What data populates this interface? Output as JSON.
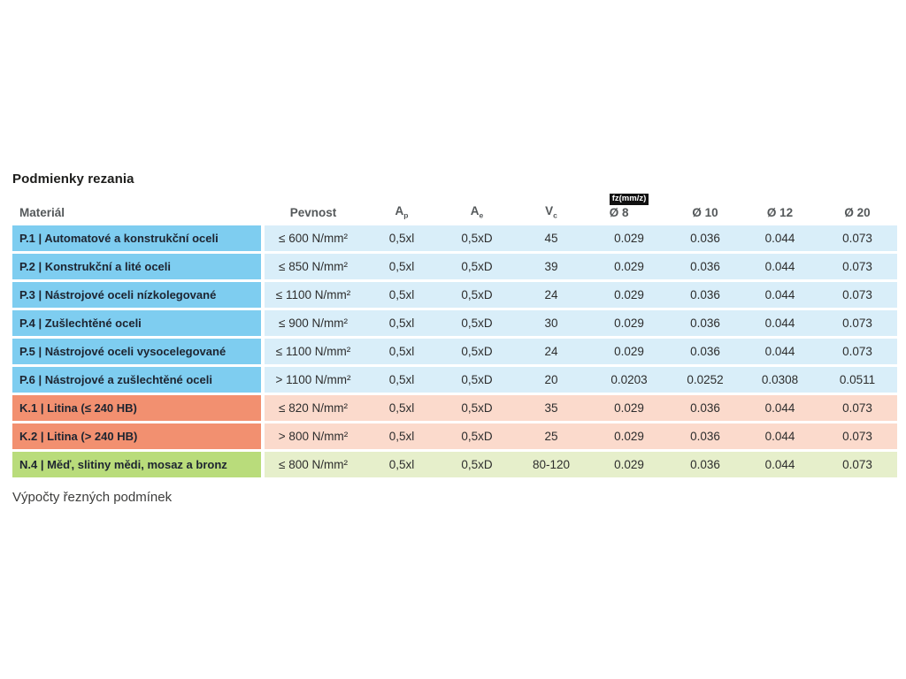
{
  "title": "Podmienky rezania",
  "caption": "Výpočty řezných podmínek",
  "table": {
    "headers": {
      "material": "Materiál",
      "pevnost": "Pevnost",
      "ap": {
        "base": "A",
        "sub": "p"
      },
      "ae": {
        "base": "A",
        "sub": "e"
      },
      "vc": {
        "base": "V",
        "sub": "c"
      },
      "fz_badge": "fz(mm/z)",
      "d8": "Ø 8",
      "d10": "Ø 10",
      "d12": "Ø 12",
      "d20": "Ø 20"
    },
    "rows": [
      {
        "theme": "blue",
        "material": "P.1 | Automatové a konstrukční oceli",
        "pevnost": "≤ 600 N/mm²",
        "ap": "0,5xl",
        "ae": "0,5xD",
        "vc": "45",
        "d8": "0.029",
        "d10": "0.036",
        "d12": "0.044",
        "d20": "0.073"
      },
      {
        "theme": "blue",
        "material": "P.2 | Konstrukční a lité oceli",
        "pevnost": "≤ 850 N/mm²",
        "ap": "0,5xl",
        "ae": "0,5xD",
        "vc": "39",
        "d8": "0.029",
        "d10": "0.036",
        "d12": "0.044",
        "d20": "0.073"
      },
      {
        "theme": "blue",
        "material": "P.3 | Nástrojové oceli nízkolegované",
        "pevnost": "≤ 1100 N/mm²",
        "ap": "0,5xl",
        "ae": "0,5xD",
        "vc": "24",
        "d8": "0.029",
        "d10": "0.036",
        "d12": "0.044",
        "d20": "0.073"
      },
      {
        "theme": "blue",
        "material": "P.4 | Zušlechtěné oceli",
        "pevnost": "≤ 900 N/mm²",
        "ap": "0,5xl",
        "ae": "0,5xD",
        "vc": "30",
        "d8": "0.029",
        "d10": "0.036",
        "d12": "0.044",
        "d20": "0.073"
      },
      {
        "theme": "blue",
        "material": "P.5 | Nástrojové oceli vysocelegované",
        "pevnost": "≤ 1100 N/mm²",
        "ap": "0,5xl",
        "ae": "0,5xD",
        "vc": "24",
        "d8": "0.029",
        "d10": "0.036",
        "d12": "0.044",
        "d20": "0.073"
      },
      {
        "theme": "blue",
        "material": "P.6 | Nástrojové a zušlechtěné oceli",
        "pevnost": "> 1100 N/mm²",
        "ap": "0,5xl",
        "ae": "0,5xD",
        "vc": "20",
        "d8": "0.0203",
        "d10": "0.0252",
        "d12": "0.0308",
        "d20": "0.0511"
      },
      {
        "theme": "orange",
        "material": "K.1 | Litina (≤ 240 HB)",
        "pevnost": "≤ 820 N/mm²",
        "ap": "0,5xl",
        "ae": "0,5xD",
        "vc": "35",
        "d8": "0.029",
        "d10": "0.036",
        "d12": "0.044",
        "d20": "0.073"
      },
      {
        "theme": "orange",
        "material": "K.2 | Litina (> 240 HB)",
        "pevnost": "> 800 N/mm²",
        "ap": "0,5xl",
        "ae": "0,5xD",
        "vc": "25",
        "d8": "0.029",
        "d10": "0.036",
        "d12": "0.044",
        "d20": "0.073"
      },
      {
        "theme": "green",
        "material": "N.4 | Měď, slitiny mědi, mosaz a bronz",
        "pevnost": "≤ 800 N/mm²",
        "ap": "0,5xl",
        "ae": "0,5xD",
        "vc": "80-120",
        "d8": "0.029",
        "d10": "0.036",
        "d12": "0.044",
        "d20": "0.073"
      }
    ]
  },
  "colors": {
    "blue_strong": "#7ecdf0",
    "blue_light": "#d9eef9",
    "orange_strong": "#f29070",
    "orange_light": "#fbdacc",
    "green_strong": "#b9dc7b",
    "green_light": "#e6efcb",
    "header_text": "#54585a",
    "badge_bg": "#111111",
    "badge_text": "#ffffff",
    "title_text": "#1d1d1b"
  }
}
